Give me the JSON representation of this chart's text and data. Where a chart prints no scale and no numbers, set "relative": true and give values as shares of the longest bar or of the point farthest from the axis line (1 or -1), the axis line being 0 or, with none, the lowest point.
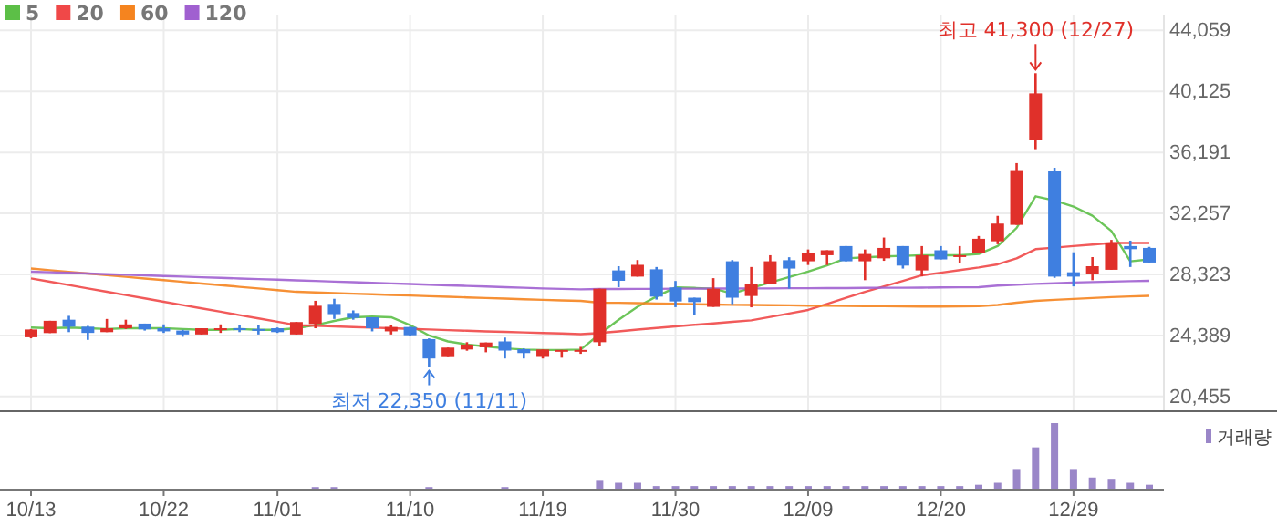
{
  "chart_data": [
    {
      "type": "candlestick",
      "categories": [
        null,
        null,
        null,
        null,
        null,
        null,
        null,
        null,
        null,
        null,
        null,
        null,
        null,
        null,
        null,
        null,
        null,
        null,
        null,
        null,
        null,
        null,
        null,
        null,
        null,
        null,
        null,
        null,
        null,
        null,
        null,
        null,
        null,
        null,
        null,
        null,
        null,
        null,
        null,
        null,
        null,
        null,
        null,
        null,
        null,
        null,
        null,
        null,
        null,
        null,
        null,
        null,
        null,
        null,
        null,
        null,
        null,
        null,
        null,
        null
      ],
      "ohlc": [
        [
          24270,
          24800,
          24200,
          24770
        ],
        [
          24540,
          25330,
          24540,
          25330
        ],
        [
          25400,
          25650,
          24600,
          24950
        ],
        [
          24950,
          25000,
          24100,
          24550
        ],
        [
          24600,
          25450,
          24600,
          24850
        ],
        [
          24850,
          25400,
          24800,
          25100
        ],
        [
          25150,
          25150,
          24700,
          24780
        ],
        [
          24850,
          25100,
          24550,
          24650
        ],
        [
          24700,
          24750,
          24300,
          24450
        ],
        [
          24450,
          24850,
          24450,
          24850
        ],
        [
          24800,
          25100,
          24550,
          24850
        ],
        [
          24850,
          25050,
          24600,
          24800
        ],
        [
          24800,
          25050,
          24450,
          24750
        ],
        [
          24850,
          24900,
          24550,
          24600
        ],
        [
          24450,
          25250,
          24450,
          25250
        ],
        [
          25125,
          26620,
          24850,
          26300
        ],
        [
          26420,
          26750,
          25450,
          25760
        ],
        [
          25830,
          26000,
          25400,
          25520
        ],
        [
          25560,
          25560,
          24650,
          24850
        ],
        [
          24650,
          25050,
          24450,
          24930
        ],
        [
          24930,
          24950,
          24350,
          24400
        ],
        [
          24150,
          24200,
          22350,
          22900
        ],
        [
          22990,
          23600,
          22990,
          23600
        ],
        [
          23480,
          23950,
          23400,
          23800
        ],
        [
          23620,
          23930,
          23300,
          23930
        ],
        [
          24000,
          24250,
          22900,
          23410
        ],
        [
          23500,
          23550,
          22900,
          23250
        ],
        [
          23000,
          23480,
          22900,
          23480
        ],
        [
          23400,
          23450,
          22950,
          23450
        ],
        [
          23400,
          23650,
          23200,
          23450
        ],
        [
          23950,
          27400,
          23680,
          27400
        ],
        [
          28580,
          28850,
          27500,
          27910
        ],
        [
          28180,
          29250,
          28180,
          28940
        ],
        [
          28650,
          28800,
          26700,
          26890
        ],
        [
          27480,
          27900,
          26210,
          26580
        ],
        [
          26820,
          26820,
          25700,
          26540
        ],
        [
          26230,
          28080,
          26230,
          27400
        ],
        [
          29170,
          29250,
          26400,
          26820
        ],
        [
          26930,
          28800,
          26200,
          27680
        ],
        [
          27710,
          29560,
          27710,
          29170
        ],
        [
          29240,
          29430,
          27400,
          28700
        ],
        [
          29170,
          29930,
          28930,
          29680
        ],
        [
          29560,
          29880,
          28930,
          29880
        ],
        [
          30150,
          30150,
          29170,
          29170
        ],
        [
          29170,
          29930,
          27950,
          29640
        ],
        [
          29360,
          30700,
          29200,
          30030
        ],
        [
          30150,
          30150,
          28700,
          28890
        ],
        [
          28580,
          30150,
          28200,
          29560
        ],
        [
          29880,
          30150,
          29290,
          29290
        ],
        [
          29500,
          30150,
          29050,
          29560
        ],
        [
          29680,
          30800,
          29680,
          30620
        ],
        [
          30460,
          32100,
          30270,
          31600
        ],
        [
          31520,
          35500,
          31520,
          35050
        ],
        [
          37000,
          41300,
          36400,
          40000
        ],
        [
          34970,
          35200,
          28100,
          28180
        ],
        [
          28460,
          29750,
          27550,
          28180
        ],
        [
          28380,
          29440,
          27950,
          28850
        ],
        [
          28620,
          30550,
          28620,
          30350
        ],
        [
          30150,
          30500,
          28800,
          29950
        ],
        [
          30030,
          30100,
          29090,
          29090
        ]
      ],
      "colors": [
        "#e0302a",
        "#e0302a",
        "#3f7fe0",
        "#3f7fe0",
        "#e0302a",
        "#e0302a",
        "#3f7fe0",
        "#3f7fe0",
        "#3f7fe0",
        "#e0302a",
        "#e0302a",
        "#3f7fe0",
        "#3f7fe0",
        "#3f7fe0",
        "#e0302a",
        "#e0302a",
        "#3f7fe0",
        "#3f7fe0",
        "#3f7fe0",
        "#e0302a",
        "#3f7fe0",
        "#3f7fe0",
        "#e0302a",
        "#e0302a",
        "#e0302a",
        "#3f7fe0",
        "#3f7fe0",
        "#e0302a",
        "#e0302a",
        "#e0302a",
        "#e0302a",
        "#3f7fe0",
        "#e0302a",
        "#3f7fe0",
        "#3f7fe0",
        "#3f7fe0",
        "#e0302a",
        "#3f7fe0",
        "#e0302a",
        "#e0302a",
        "#3f7fe0",
        "#e0302a",
        "#e0302a",
        "#3f7fe0",
        "#e0302a",
        "#e0302a",
        "#3f7fe0",
        "#e0302a",
        "#3f7fe0",
        "#e0302a",
        "#e0302a",
        "#e0302a",
        "#e0302a",
        "#e0302a",
        "#3f7fe0",
        "#3f7fe0",
        "#e0302a",
        "#e0302a",
        "#3f7fe0",
        "#3f7fe0"
      ],
      "series": [
        {
          "name": "5",
          "type": "line",
          "color": "#5cbf47",
          "values": [
            24900,
            24850,
            24900,
            24850,
            24800,
            24850,
            24850,
            24850,
            24800,
            24750,
            24750,
            24800,
            24750,
            24750,
            24850,
            25050,
            25325,
            25560,
            25600,
            25560,
            25050,
            24385,
            24000,
            23800,
            23680,
            23550,
            23480,
            23450,
            23450,
            23480,
            24470,
            25400,
            26230,
            26900,
            27480,
            27450,
            27400,
            27090,
            27450,
            27800,
            28150,
            28500,
            28900,
            29360,
            29420,
            29480,
            29520,
            29560,
            29560,
            29560,
            29640,
            30150,
            31320,
            33360,
            33090,
            32700,
            32110,
            31120,
            29170,
            29290
          ]
        },
        {
          "name": "20",
          "type": "line",
          "color": "#f04848",
          "values": [
            28065,
            27850,
            27635,
            27420,
            27205,
            26990,
            26775,
            26560,
            26345,
            26130,
            25915,
            25700,
            25485,
            25270,
            25050,
            25010,
            24970,
            24930,
            24890,
            24850,
            24810,
            24770,
            24730,
            24690,
            24650,
            24615,
            24580,
            24545,
            24510,
            24470,
            24540,
            24650,
            24760,
            24870,
            24970,
            25070,
            25160,
            25260,
            25360,
            25580,
            25800,
            26030,
            26420,
            26810,
            27200,
            27550,
            27900,
            28265,
            28430,
            28600,
            28770,
            28970,
            29360,
            29950,
            30050,
            30150,
            30250,
            30350,
            30350,
            30350
          ]
        },
        {
          "name": "60",
          "type": "line",
          "color": "#f5841f",
          "values": [
            28700,
            28593,
            28486,
            28379,
            28272,
            28165,
            28058,
            27951,
            27844,
            27737,
            27630,
            27523,
            27416,
            27309,
            27200,
            27160,
            27120,
            27080,
            27040,
            27000,
            26960,
            26920,
            26880,
            26840,
            26800,
            26760,
            26720,
            26680,
            26650,
            26620,
            26500,
            26490,
            26470,
            26450,
            26430,
            26400,
            26380,
            26360,
            26350,
            26340,
            26330,
            26310,
            26300,
            26290,
            26280,
            26270,
            26260,
            26250,
            26250,
            26260,
            26270,
            26350,
            26500,
            26620,
            26680,
            26740,
            26800,
            26860,
            26900,
            26940
          ]
        },
        {
          "name": "120",
          "type": "line",
          "color": "#a060d0",
          "values": [
            28500,
            28460,
            28420,
            28380,
            28340,
            28300,
            28260,
            28220,
            28180,
            28140,
            28100,
            28060,
            28020,
            27980,
            27940,
            27900,
            27860,
            27820,
            27780,
            27740,
            27700,
            27660,
            27620,
            27580,
            27540,
            27500,
            27460,
            27420,
            27390,
            27360,
            27380,
            27380,
            27390,
            27390,
            27400,
            27400,
            27410,
            27410,
            27420,
            27420,
            27430,
            27430,
            27440,
            27440,
            27450,
            27460,
            27460,
            27470,
            27480,
            27490,
            27500,
            27600,
            27650,
            27710,
            27750,
            27800,
            27830,
            27860,
            27890,
            27910
          ]
        }
      ],
      "ylim": [
        19560,
        45080
      ],
      "yticks": [
        {
          "value": 20455,
          "label": "20,455"
        },
        {
          "value": 24389,
          "label": "24,389"
        },
        {
          "value": 28323,
          "label": "28,323"
        },
        {
          "value": 32257,
          "label": "32,257"
        },
        {
          "value": 36191,
          "label": "36,191"
        },
        {
          "value": 40125,
          "label": "40,125"
        },
        {
          "value": 44059,
          "label": "44,059"
        }
      ],
      "grid": true,
      "legend": "top left",
      "tick_labels": "y",
      "annotations": [
        "최고 41,300 (12/27)",
        "최저 22,350 (11/11)"
      ]
    },
    {
      "type": "bar",
      "categories": [
        "10/13",
        null,
        null,
        null,
        null,
        null,
        null,
        "10/22",
        null,
        null,
        null,
        null,
        null,
        "11/01",
        null,
        null,
        null,
        null,
        null,
        null,
        "11/10",
        null,
        null,
        null,
        null,
        null,
        null,
        "11/19",
        null,
        null,
        null,
        null,
        null,
        null,
        "11/30",
        null,
        null,
        null,
        null,
        null,
        null,
        "12/09",
        null,
        null,
        null,
        null,
        null,
        null,
        "12/20",
        null,
        null,
        null,
        null,
        null,
        null,
        "12/29",
        null,
        null,
        null,
        null
      ],
      "relative": true,
      "legend": "top right",
      "tick_labels": "x",
      "grid": "x",
      "series": [
        {
          "name": "거래량",
          "color": "#9a86c8",
          "values": [
            null,
            null,
            null,
            null,
            null,
            null,
            null,
            null,
            null,
            null,
            null,
            null,
            null,
            null,
            null,
            0.025,
            0.025,
            null,
            null,
            null,
            null,
            0.025,
            null,
            null,
            null,
            0.025,
            null,
            null,
            null,
            null,
            0.12,
            0.09,
            0.09,
            0.04,
            0.04,
            0.04,
            0.04,
            0.04,
            0.04,
            0.04,
            0.04,
            0.04,
            0.04,
            0.04,
            0.04,
            0.04,
            0.04,
            0.04,
            0.04,
            0.04,
            0.06,
            0.09,
            0.3,
            0.63,
            1,
            0.3,
            0.17,
            0.15,
            0.09,
            0.06
          ]
        }
      ]
    }
  ]
}
